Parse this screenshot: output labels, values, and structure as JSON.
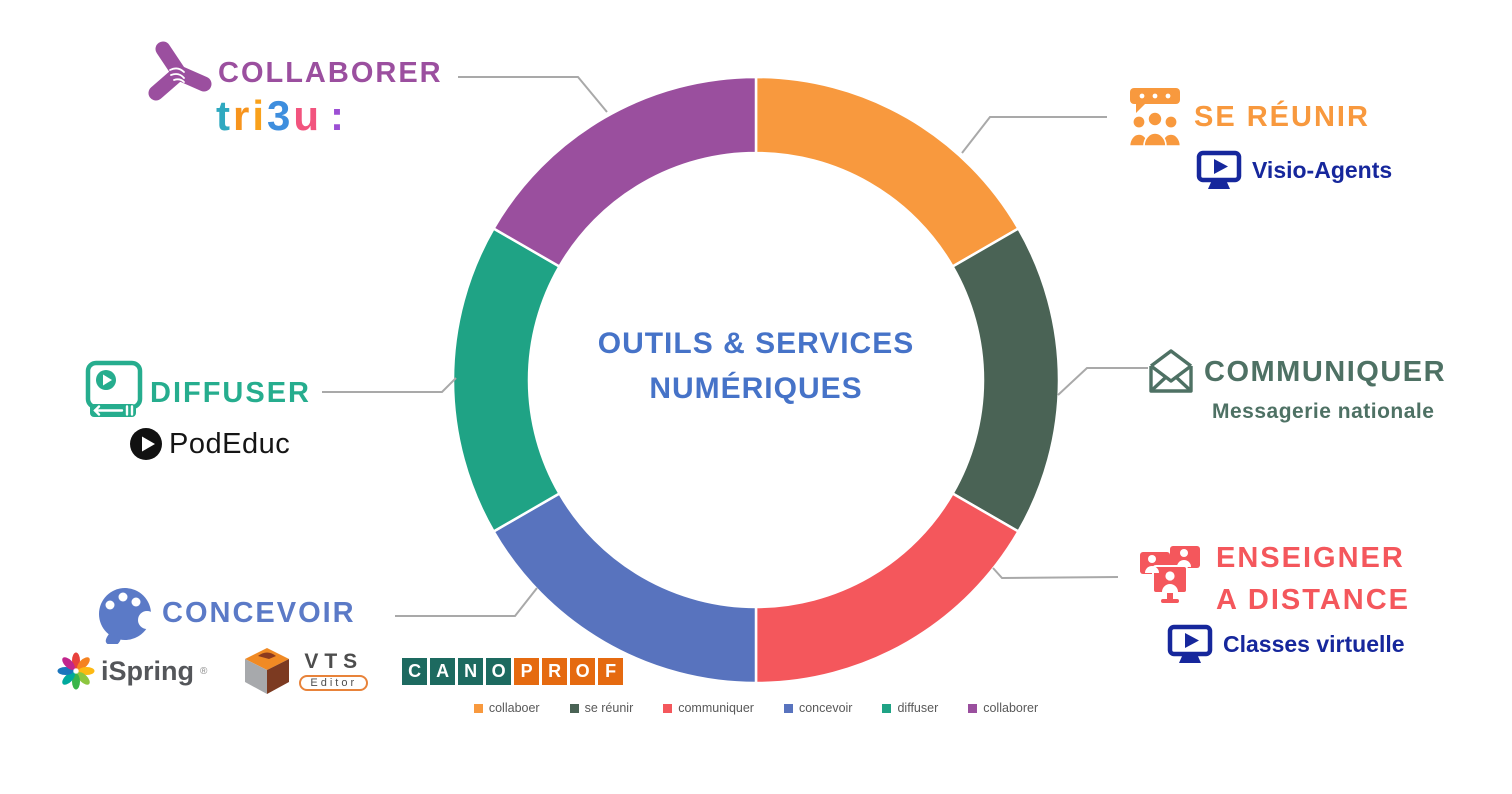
{
  "title": {
    "line1": "OUTILS & SERVICES",
    "line2": "NUMÉRIQUES",
    "color": "#4673C8"
  },
  "chart_data": {
    "type": "donut",
    "title": "OUTILS & SERVICES NUMÉRIQUES",
    "start_angle_deg": 0,
    "direction": "clockwise",
    "inner_radius_ratio": 0.75,
    "legend_position": "bottom",
    "segments": [
      {
        "legend_label": "collaboer",
        "callout": "SE RÉUNIR",
        "value": 1,
        "color": "#F8993E"
      },
      {
        "legend_label": "se réunir",
        "callout": "COMMUNIQUER",
        "value": 1,
        "color": "#4A6355"
      },
      {
        "legend_label": "communiquer",
        "callout": "ENSEIGNER A DISTANCE",
        "value": 1,
        "color": "#F4575C"
      },
      {
        "legend_label": "concevoir",
        "callout": "CONCEVOIR",
        "value": 1,
        "color": "#5873BE"
      },
      {
        "legend_label": "diffuser",
        "callout": "DIFFUSER",
        "value": 1,
        "color": "#1FA385"
      },
      {
        "legend_label": "collaborer",
        "callout": "COLLABORER",
        "value": 1,
        "color": "#9A4F9E"
      }
    ]
  },
  "callouts": {
    "collaborer": {
      "title": "COLLABORER",
      "color": "#9B4F9F",
      "tribu_letters": [
        {
          "ch": "t",
          "color": "#2FA9C0"
        },
        {
          "ch": "r",
          "color": "#F7941D"
        },
        {
          "ch": "i",
          "color": "#F9A11B"
        },
        {
          "ch": "3",
          "color": "#3E8EDE"
        },
        {
          "ch": "u",
          "color": "#F2547E"
        },
        {
          "ch": ":",
          "color": "#9C4FD4"
        }
      ]
    },
    "se_reunir": {
      "title": "SE RÉUNIR",
      "color": "#F8993E",
      "tool": "Visio-Agents",
      "tool_color": "#16279C"
    },
    "communiquer": {
      "title": "COMMUNIQUER",
      "color": "#4E7164",
      "tool": "Messagerie nationale"
    },
    "enseigner": {
      "title_line1": "ENSEIGNER",
      "title_line2": "A DISTANCE",
      "color": "#F4575C",
      "tool": "Classes virtuelle",
      "tool_color": "#16279C"
    },
    "diffuser": {
      "title": "DIFFUSER",
      "color": "#26AD8E",
      "tool": "PodEduc"
    },
    "concevoir": {
      "title": "CONCEVOIR",
      "color": "#5B7AC7",
      "ispring_label": "iSpring",
      "ispring_reg": "®",
      "vts_label": "VTS",
      "vts_sub_label": "Editor",
      "canoprof_letters": [
        {
          "ch": "C",
          "bg": "#1D6A60"
        },
        {
          "ch": "A",
          "bg": "#1D6A60"
        },
        {
          "ch": "N",
          "bg": "#1D6A60"
        },
        {
          "ch": "O",
          "bg": "#1D6A60"
        },
        {
          "ch": "P",
          "bg": "#E56A10"
        },
        {
          "ch": "R",
          "bg": "#E56A10"
        },
        {
          "ch": "O",
          "bg": "#E56A10"
        },
        {
          "ch": "F",
          "bg": "#E56A10"
        }
      ]
    }
  }
}
